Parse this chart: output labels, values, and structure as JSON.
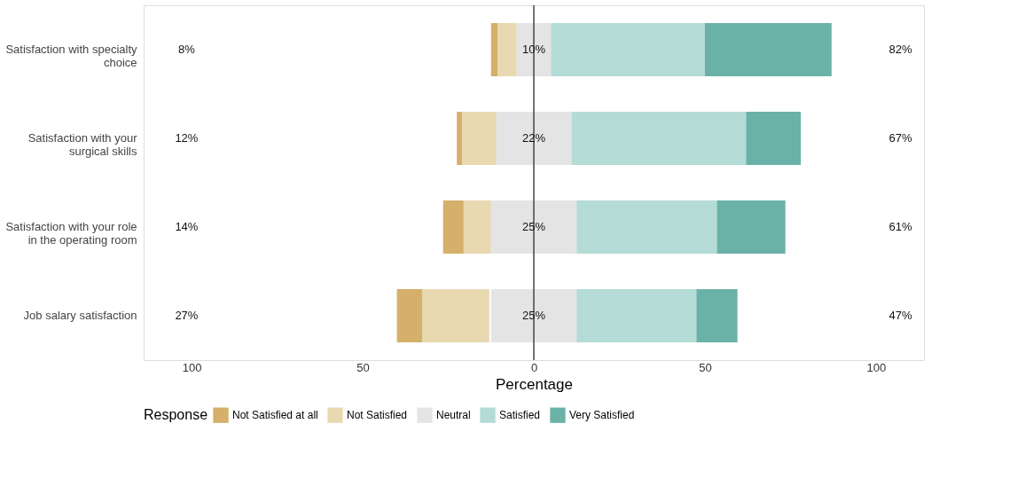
{
  "chart_data": {
    "type": "bar",
    "orientation": "horizontal",
    "xlabel": "Percentage",
    "legend_title": "Response",
    "legend": "bottom",
    "grid": false,
    "categories": [
      "Satisfaction with specialty\nchoice",
      "Satisfaction with your\nsurgical skills",
      "Satisfaction with your role\nin the operating room",
      "Job salary satisfaction"
    ],
    "series": [
      {
        "name": "Not Satisfied at all",
        "color": "#d4b06a",
        "values": [
          2,
          1.5,
          6,
          7.5
        ],
        "base": [
          -12.5,
          -22.5,
          -26.5,
          -40
        ]
      },
      {
        "name": "Not Satisfied",
        "color": "#e9d9b1",
        "values": [
          5.5,
          10.5,
          8,
          19.5
        ],
        "base": [
          -10.5,
          -21,
          -20.5,
          -32.5
        ]
      },
      {
        "name": "Neutral",
        "color": "#e4e4e4",
        "values": [
          10,
          22,
          25,
          25
        ],
        "base": [
          -5,
          -11,
          -12.5,
          -12.5
        ]
      },
      {
        "name": "Satisfied",
        "color": "#b4dbd5",
        "values": [
          45,
          51,
          41,
          35
        ],
        "base": [
          5,
          11,
          12.5,
          12.5
        ]
      },
      {
        "name": "Very Satisfied",
        "color": "#6ab2a8",
        "values": [
          37,
          16,
          20,
          12
        ],
        "base": [
          50,
          62,
          53.5,
          47.5
        ]
      }
    ],
    "xlim": [
      -114,
      114
    ],
    "xticks": [
      {
        "value": -100,
        "label": "100"
      },
      {
        "value": -50,
        "label": "50"
      },
      0,
      50,
      100
    ],
    "ref_lines": [
      {
        "axis": "x",
        "value": 0,
        "color": "#444444"
      }
    ],
    "annotations": [
      "8%",
      "10%",
      "82%",
      "12%",
      "22%",
      "67%",
      "14%",
      "25%",
      "61%",
      "27%",
      "25%",
      "47%"
    ]
  }
}
